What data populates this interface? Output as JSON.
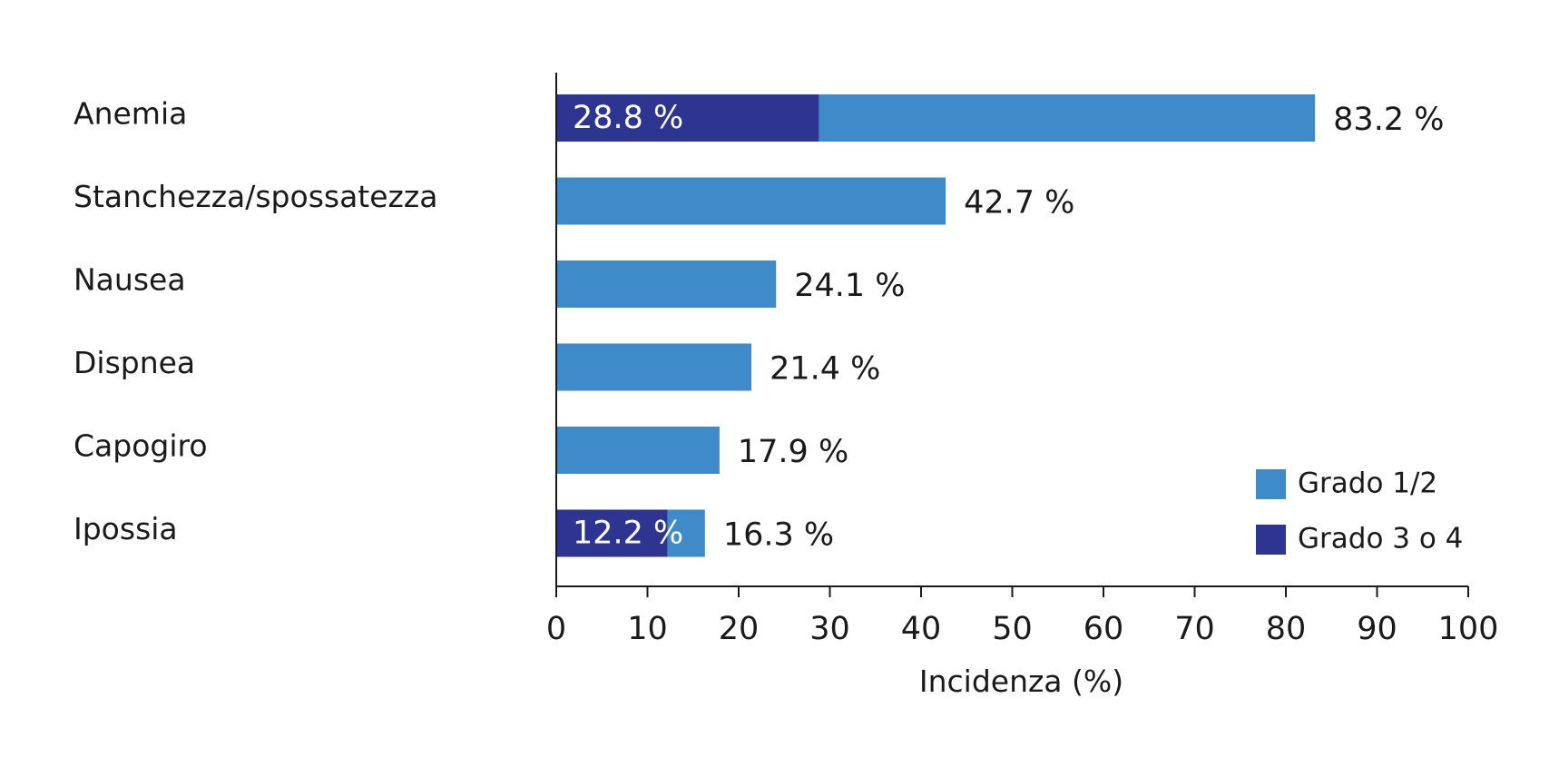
{
  "chart_data": {
    "type": "bar",
    "orientation": "horizontal",
    "stacked": true,
    "categories": [
      "Anemia",
      "Stanchezza/spossatezza",
      "Nausea",
      "Dispnea",
      "Capogiro",
      "Ipossia"
    ],
    "totals": [
      83.2,
      42.7,
      24.1,
      21.4,
      17.9,
      16.3
    ],
    "total_labels": [
      "83.2 %",
      "42.7 %",
      "24.1 %",
      "21.4 %",
      "17.9 %",
      "16.3 %"
    ],
    "series": [
      {
        "name": "Grado 3 o 4",
        "color": "#2e3590",
        "values": [
          28.8,
          0,
          0,
          0,
          0,
          12.2
        ],
        "labels": [
          "28.8 %",
          "",
          "",
          "",
          "",
          "12.2 %"
        ]
      },
      {
        "name": "Grado 1/2",
        "color": "#3f8ac9",
        "values": [
          54.4,
          42.7,
          24.1,
          21.4,
          17.9,
          4.1
        ]
      }
    ],
    "legend": [
      {
        "name": "Grado 1/2",
        "color": "#3f8ac9"
      },
      {
        "name": "Grado 3 o 4",
        "color": "#2e3590"
      }
    ],
    "legend_position": "bottom-right",
    "xlabel": "Incidenza (%)",
    "xlim": [
      0,
      100
    ],
    "xticks": [
      0,
      10,
      20,
      30,
      40,
      50,
      60,
      70,
      80,
      90,
      100
    ],
    "grid": false
  }
}
